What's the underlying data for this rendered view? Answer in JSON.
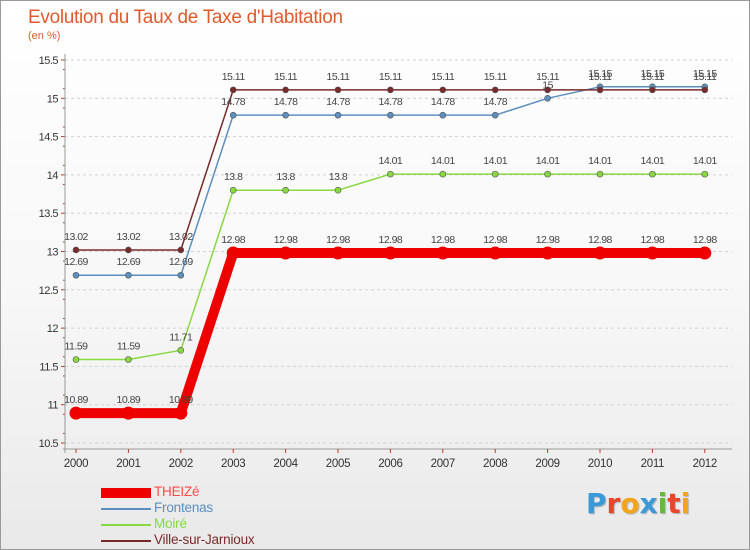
{
  "chart_data": {
    "type": "line",
    "title": "Evolution du Taux de Taxe d'Habitation",
    "subtitle": "(en %)",
    "categories": [
      "2000",
      "2001",
      "2002",
      "2003",
      "2004",
      "2005",
      "2006",
      "2007",
      "2008",
      "2009",
      "2010",
      "2011",
      "2012"
    ],
    "ylim": [
      10.5,
      15.5
    ],
    "yticks": [
      "10.5",
      "11",
      "11.5",
      "12",
      "12.5",
      "13",
      "13.5",
      "14",
      "14.5",
      "15",
      "15.5"
    ],
    "grid": "dashed-horizontal",
    "legend_position": "bottom-left",
    "series": [
      {
        "name": "THEIZé",
        "color": "#ee0000",
        "values": [
          10.89,
          10.89,
          10.89,
          12.98,
          12.98,
          12.98,
          12.98,
          12.98,
          12.98,
          12.98,
          12.98,
          12.98,
          12.98
        ],
        "labels": [
          "10.89",
          "10.89",
          "10.89",
          "12.98",
          "12.98",
          "12.98",
          "12.98",
          "12.98",
          "12.98",
          "12.98",
          "12.98",
          "12.98",
          "12.98"
        ]
      },
      {
        "name": "Frontenas",
        "color": "#5b8fc0",
        "values": [
          12.69,
          12.69,
          12.69,
          14.78,
          14.78,
          14.78,
          14.78,
          14.78,
          14.78,
          15,
          15.15,
          15.15,
          15.15
        ],
        "labels": [
          "12.69",
          "12.69",
          "12.69",
          "14.78",
          "14.78",
          "14.78",
          "14.78",
          "14.78",
          "14.78",
          "15",
          "15.15",
          "15.15",
          "15.15"
        ]
      },
      {
        "name": "Moiré",
        "color": "#88d840",
        "values": [
          11.59,
          11.59,
          11.71,
          13.8,
          13.8,
          13.8,
          14.01,
          14.01,
          14.01,
          14.01,
          14.01,
          14.01,
          14.01
        ],
        "labels": [
          "11.59",
          "11.59",
          "11.71",
          "13.8",
          "13.8",
          "13.8",
          "14.01",
          "14.01",
          "14.01",
          "14.01",
          "14.01",
          "14.01",
          "14.01"
        ]
      },
      {
        "name": "Ville-sur-Jarnioux",
        "color": "#7a2a2a",
        "values": [
          13.02,
          13.02,
          13.02,
          15.11,
          15.11,
          15.11,
          15.11,
          15.11,
          15.11,
          15.11,
          15.11,
          15.11,
          15.11
        ],
        "labels": [
          "13.02",
          "13.02",
          "13.02",
          "15.11",
          "15.11",
          "15.11",
          "15.11",
          "15.11",
          "15.11",
          "15.11",
          "15.11",
          "15.11",
          "15.11"
        ]
      }
    ]
  },
  "brand": {
    "letters": [
      "P",
      "r",
      "o",
      "x",
      "i",
      "t",
      "i"
    ],
    "colors": [
      "#3a9ad9",
      "#e8452a",
      "#f2a51a",
      "#3a9ad9",
      "#68b93a",
      "#e8452a",
      "#f2a51a"
    ]
  }
}
